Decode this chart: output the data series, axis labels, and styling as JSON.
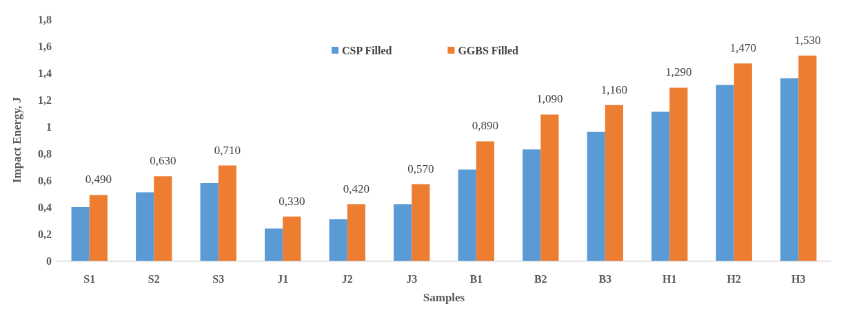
{
  "chart_data": {
    "type": "bar",
    "xlabel": "Samples",
    "ylabel": "Impact Energy, J",
    "categories": [
      "S1",
      "S2",
      "S3",
      "J1",
      "J2",
      "J3",
      "B1",
      "B2",
      "B3",
      "H1",
      "H2",
      "H3"
    ],
    "series": [
      {
        "name": "CSP Filled",
        "color": "#5b9bd5",
        "values": [
          0.4,
          0.51,
          0.58,
          0.24,
          0.31,
          0.42,
          0.68,
          0.83,
          0.96,
          1.11,
          1.31,
          1.36
        ]
      },
      {
        "name": "GGBS Filled",
        "color": "#ed7d31",
        "values": [
          0.49,
          0.63,
          0.71,
          0.33,
          0.42,
          0.57,
          0.89,
          1.09,
          1.16,
          1.29,
          1.47,
          1.53
        ],
        "value_labels": [
          "0,490",
          "0,630",
          "0,710",
          "0,330",
          "0,420",
          "0,570",
          "0,890",
          "1,090",
          "1,160",
          "1,290",
          "1,470",
          "1,530"
        ]
      }
    ],
    "ylim": [
      0,
      1.8
    ],
    "yticks": [
      0,
      {
        "value": 0.2,
        "label": "0,2"
      },
      {
        "value": 0.4,
        "label": "0,4"
      },
      {
        "value": 0.6,
        "label": "0,6"
      },
      {
        "value": 0.8,
        "label": "0,8"
      },
      1,
      {
        "value": 1.2,
        "label": "1,2"
      },
      {
        "value": 1.4,
        "label": "1,4"
      },
      {
        "value": 1.6,
        "label": "1,6"
      },
      {
        "value": 1.8,
        "label": "1,8"
      }
    ],
    "grid": false,
    "legend": "top"
  }
}
